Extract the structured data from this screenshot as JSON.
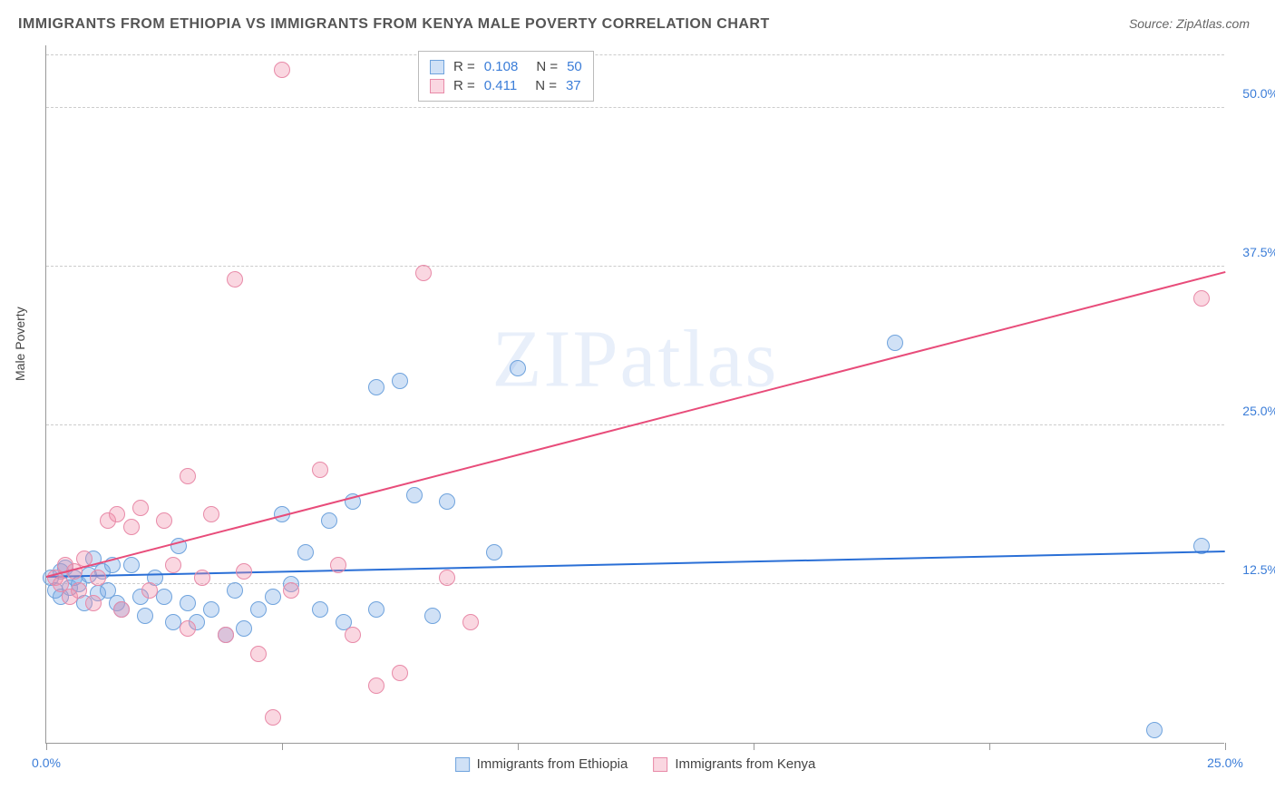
{
  "title": "IMMIGRANTS FROM ETHIOPIA VS IMMIGRANTS FROM KENYA MALE POVERTY CORRELATION CHART",
  "source": "Source: ZipAtlas.com",
  "ylabel": "Male Poverty",
  "watermark": "ZIPatlas",
  "chart": {
    "type": "scatter",
    "xlim": [
      0,
      25
    ],
    "ylim": [
      0,
      55
    ],
    "xticks": [
      0,
      5,
      10,
      15,
      20,
      25
    ],
    "xtick_labels": [
      "0.0%",
      "",
      "",
      "",
      "",
      "25.0%"
    ],
    "yticks": [
      12.5,
      25.0,
      37.5,
      50.0
    ],
    "ytick_labels": [
      "12.5%",
      "25.0%",
      "37.5%",
      "50.0%"
    ],
    "grid_color": "#cccccc",
    "axis_color": "#999999",
    "background_color": "#ffffff",
    "tick_label_color": "#3b7dd8"
  },
  "series": [
    {
      "name": "Immigrants from Ethiopia",
      "color_fill": "rgba(120,170,230,0.35)",
      "color_stroke": "#6fa3dd",
      "marker_radius": 9,
      "r_value": "0.108",
      "n_value": "50",
      "trend": {
        "x1": 0,
        "y1": 13.0,
        "x2": 25,
        "y2": 15.0,
        "color": "#2a6fd6",
        "width": 2
      },
      "points": [
        [
          0.1,
          13.0
        ],
        [
          0.2,
          12.0
        ],
        [
          0.3,
          13.5
        ],
        [
          0.3,
          11.5
        ],
        [
          0.4,
          13.8
        ],
        [
          0.5,
          12.2
        ],
        [
          0.6,
          13.0
        ],
        [
          0.7,
          12.5
        ],
        [
          0.8,
          11.0
        ],
        [
          0.9,
          13.2
        ],
        [
          1.0,
          14.5
        ],
        [
          1.1,
          11.8
        ],
        [
          1.2,
          13.5
        ],
        [
          1.3,
          12.0
        ],
        [
          1.4,
          14.0
        ],
        [
          1.5,
          11.0
        ],
        [
          1.6,
          10.5
        ],
        [
          1.8,
          14.0
        ],
        [
          2.0,
          11.5
        ],
        [
          2.1,
          10.0
        ],
        [
          2.3,
          13.0
        ],
        [
          2.5,
          11.5
        ],
        [
          2.7,
          9.5
        ],
        [
          2.8,
          15.5
        ],
        [
          3.0,
          11.0
        ],
        [
          3.2,
          9.5
        ],
        [
          3.5,
          10.5
        ],
        [
          3.8,
          8.5
        ],
        [
          4.0,
          12.0
        ],
        [
          4.2,
          9.0
        ],
        [
          4.5,
          10.5
        ],
        [
          4.8,
          11.5
        ],
        [
          5.0,
          18.0
        ],
        [
          5.2,
          12.5
        ],
        [
          5.5,
          15.0
        ],
        [
          5.8,
          10.5
        ],
        [
          6.0,
          17.5
        ],
        [
          6.3,
          9.5
        ],
        [
          6.5,
          19.0
        ],
        [
          7.0,
          28.0
        ],
        [
          7.0,
          10.5
        ],
        [
          7.5,
          28.5
        ],
        [
          7.8,
          19.5
        ],
        [
          8.2,
          10.0
        ],
        [
          8.5,
          19.0
        ],
        [
          9.5,
          15.0
        ],
        [
          10.0,
          29.5
        ],
        [
          18.0,
          31.5
        ],
        [
          23.5,
          1.0
        ],
        [
          24.5,
          15.5
        ]
      ]
    },
    {
      "name": "Immigrants from Kenya",
      "color_fill": "rgba(240,140,170,0.35)",
      "color_stroke": "#e88aa8",
      "marker_radius": 9,
      "r_value": "0.411",
      "n_value": "37",
      "trend": {
        "x1": 0,
        "y1": 13.0,
        "x2": 25,
        "y2": 37.0,
        "color": "#e84c7a",
        "width": 2
      },
      "points": [
        [
          0.2,
          13.0
        ],
        [
          0.3,
          12.5
        ],
        [
          0.4,
          14.0
        ],
        [
          0.5,
          11.5
        ],
        [
          0.6,
          13.5
        ],
        [
          0.7,
          12.0
        ],
        [
          0.8,
          14.5
        ],
        [
          1.0,
          11.0
        ],
        [
          1.1,
          13.0
        ],
        [
          1.3,
          17.5
        ],
        [
          1.5,
          18.0
        ],
        [
          1.6,
          10.5
        ],
        [
          1.8,
          17.0
        ],
        [
          2.0,
          18.5
        ],
        [
          2.2,
          12.0
        ],
        [
          2.5,
          17.5
        ],
        [
          2.7,
          14.0
        ],
        [
          3.0,
          21.0
        ],
        [
          3.0,
          9.0
        ],
        [
          3.3,
          13.0
        ],
        [
          3.5,
          18.0
        ],
        [
          3.8,
          8.5
        ],
        [
          4.0,
          36.5
        ],
        [
          4.2,
          13.5
        ],
        [
          4.5,
          7.0
        ],
        [
          4.8,
          2.0
        ],
        [
          5.0,
          53.0
        ],
        [
          5.2,
          12.0
        ],
        [
          5.8,
          21.5
        ],
        [
          6.2,
          14.0
        ],
        [
          6.5,
          8.5
        ],
        [
          7.0,
          4.5
        ],
        [
          7.5,
          5.5
        ],
        [
          8.0,
          37.0
        ],
        [
          8.5,
          13.0
        ],
        [
          9.0,
          9.5
        ],
        [
          24.5,
          35.0
        ]
      ]
    }
  ],
  "legend_top": {
    "r_label": "R =",
    "n_label": "N ="
  },
  "legend_bottom": {
    "items": [
      "Immigrants from Ethiopia",
      "Immigrants from Kenya"
    ]
  }
}
